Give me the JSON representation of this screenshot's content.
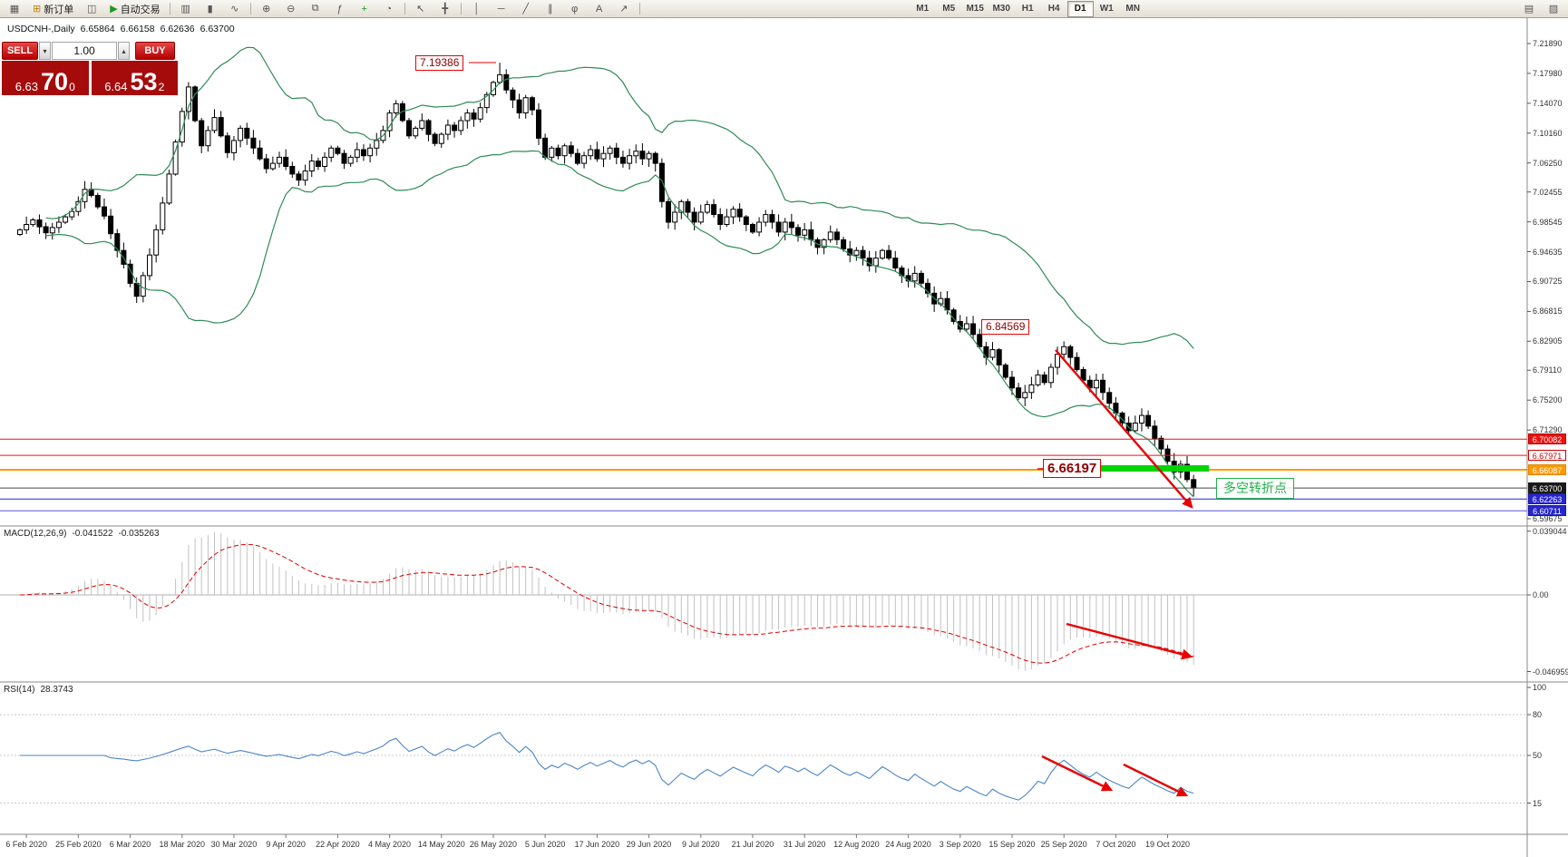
{
  "toolbar": {
    "items": [
      {
        "name": "new-chart-icon",
        "glyph": "▦"
      },
      {
        "name": "new-order-button",
        "glyph": "⊞",
        "glyph_color": "#b8860b",
        "label": "新订单"
      },
      {
        "name": "chart-window-icon",
        "glyph": "◫"
      },
      {
        "name": "autotrading-button",
        "glyph": "▶",
        "glyph_color": "#1a9a1a",
        "label": "自动交易"
      },
      {
        "sep": true
      },
      {
        "name": "bar-chart-icon",
        "glyph": "▥"
      },
      {
        "name": "candlestick-chart-icon",
        "glyph": "▮"
      },
      {
        "name": "line-chart-icon",
        "glyph": "∿"
      },
      {
        "sep": true
      },
      {
        "name": "zoom-in-icon",
        "glyph": "⊕"
      },
      {
        "name": "zoom-out-icon",
        "glyph": "⊖"
      },
      {
        "name": "tile-windows-icon",
        "glyph": "⧉"
      },
      {
        "name": "indicators-icon",
        "glyph": "ƒ"
      },
      {
        "name": "add-indicator-icon",
        "glyph": "+",
        "glyph_color": "#1a9a1a"
      },
      {
        "name": "period-clock-icon",
        "glyph": "◔"
      },
      {
        "sep": true
      },
      {
        "name": "cursor-icon",
        "glyph": "↖"
      },
      {
        "name": "crosshair-icon",
        "glyph": "╋"
      },
      {
        "sep": true
      },
      {
        "name": "vertical-line-icon",
        "glyph": "│"
      },
      {
        "name": "horizontal-line-icon",
        "glyph": "─"
      },
      {
        "name": "trendline-icon",
        "glyph": "╱"
      },
      {
        "name": "channel-icon",
        "glyph": "∥"
      },
      {
        "name": "fibonacci-icon",
        "glyph": "φ"
      },
      {
        "name": "text-label-icon",
        "glyph": "A"
      },
      {
        "name": "arrow-object-icon",
        "glyph": "↗"
      },
      {
        "sep": true
      }
    ],
    "timeframes": [
      "M1",
      "M5",
      "M15",
      "M30",
      "H1",
      "H4",
      "D1",
      "W1",
      "MN"
    ],
    "active_timeframe": "D1",
    "right_icons": [
      {
        "name": "charts-layout-icon",
        "glyph": "▤"
      },
      {
        "name": "window-mode-icon",
        "glyph": "▨"
      }
    ]
  },
  "trade_panel": {
    "sell_label": "SELL",
    "buy_label": "BUY",
    "volume": "1.00",
    "spinner_down": "▾",
    "spinner_up": "▴",
    "bid_small": "6.63",
    "bid_big": "70",
    "bid_sup": "0",
    "ask_small": "6.64",
    "ask_big": "53",
    "ask_sup": "2"
  },
  "chart_data": {
    "type": "candlestick",
    "title": "USDCNH-,Daily",
    "ohlc_display": {
      "open": "6.65864",
      "high": "6.66158",
      "low": "6.62636",
      "close": "6.63700"
    },
    "closes": [
      6.975,
      6.982,
      6.988,
      6.979,
      6.971,
      6.978,
      6.985,
      6.992,
      6.999,
      7.012,
      7.028,
      7.02,
      7.005,
      6.993,
      6.97,
      6.948,
      6.93,
      6.905,
      6.888,
      6.915,
      6.942,
      6.975,
      7.01,
      7.048,
      7.09,
      7.13,
      7.162,
      7.118,
      7.085,
      7.105,
      7.122,
      7.098,
      7.076,
      7.092,
      7.108,
      7.095,
      7.082,
      7.068,
      7.055,
      7.062,
      7.07,
      7.058,
      7.048,
      7.04,
      7.052,
      7.065,
      7.058,
      7.07,
      7.082,
      7.075,
      7.062,
      7.07,
      7.08,
      7.072,
      7.082,
      7.092,
      7.105,
      7.128,
      7.14,
      7.118,
      7.098,
      7.108,
      7.118,
      7.1,
      7.088,
      7.1,
      7.112,
      7.105,
      7.118,
      7.128,
      7.12,
      7.135,
      7.152,
      7.168,
      7.178,
      7.158,
      7.145,
      7.128,
      7.148,
      7.132,
      7.095,
      7.07,
      7.082,
      7.072,
      7.085,
      7.075,
      7.062,
      7.072,
      7.08,
      7.068,
      7.075,
      7.082,
      7.07,
      7.062,
      7.072,
      7.078,
      7.068,
      7.075,
      7.062,
      7.012,
      6.985,
      6.998,
      7.012,
      6.998,
      6.985,
      6.998,
      7.008,
      6.995,
      6.982,
      6.992,
      7.002,
      6.992,
      6.982,
      6.972,
      6.985,
      6.995,
      6.985,
      6.972,
      6.985,
      6.978,
      6.968,
      6.975,
      6.962,
      6.952,
      6.962,
      6.972,
      6.962,
      6.95,
      6.942,
      6.948,
      6.938,
      6.928,
      6.938,
      6.948,
      6.938,
      6.925,
      6.915,
      6.908,
      6.918,
      6.905,
      6.892,
      6.878,
      6.885,
      6.87,
      6.855,
      6.845,
      6.852,
      6.838,
      6.822,
      6.808,
      6.818,
      6.798,
      6.782,
      6.768,
      6.755,
      6.762,
      6.772,
      6.785,
      6.775,
      6.795,
      6.812,
      6.822,
      6.808,
      6.792,
      6.778,
      6.768,
      6.778,
      6.762,
      6.748,
      6.735,
      6.722,
      6.712,
      6.722,
      6.732,
      6.718,
      6.702,
      6.688,
      6.672,
      6.658,
      6.668,
      6.648,
      6.637
    ],
    "y_tick_labels": [
      "7.21890",
      "7.17980",
      "7.14070",
      "7.10160",
      "7.06250",
      "7.02455",
      "6.98545",
      "6.94635",
      "6.90725",
      "6.86815",
      "6.82905",
      "6.79110",
      "6.75200",
      "6.71290",
      "6.59675"
    ],
    "x_tick_labels": [
      "6 Feb 2020",
      "25 Feb 2020",
      "6 Mar 2020",
      "18 Mar 2020",
      "30 Mar 2020",
      "9 Apr 2020",
      "22 Apr 2020",
      "4 May 2020",
      "14 May 2020",
      "26 May 2020",
      "5 Jun 2020",
      "17 Jun 2020",
      "29 Jun 2020",
      "9 Jul 2020",
      "21 Jul 2020",
      "31 Jul 2020",
      "12 Aug 2020",
      "24 Aug 2020",
      "3 Sep 2020",
      "15 Sep 2020",
      "25 Sep 2020",
      "7 Oct 2020",
      "19 Oct 2020"
    ],
    "h_lines": [
      {
        "price": 6.70082,
        "color": "#ee1111",
        "w": 1
      },
      {
        "price": 6.67971,
        "color": "#ee1111",
        "w": 1
      },
      {
        "price": 6.66087,
        "color": "#ff9900",
        "w": 2
      },
      {
        "price": 6.637,
        "color": "#444444",
        "w": 1
      },
      {
        "price": 6.62263,
        "color": "#2626cc",
        "w": 1
      },
      {
        "price": 6.60711,
        "color": "#5555dd",
        "w": 1
      }
    ],
    "price_badges": [
      {
        "text": "6.70082",
        "bg": "#e81212",
        "fg": "#ffffff",
        "border": "#c00000"
      },
      {
        "text": "6.67971",
        "bg": "#ffffff",
        "fg": "#cc0000",
        "border": "#cc0000"
      },
      {
        "text": "6.66087",
        "bg": "#ff9900",
        "fg": "#ffffff",
        "border": "#e08800"
      },
      {
        "text": "6.63700",
        "bg": "#1a1a1a",
        "fg": "#ffffff",
        "border": "#1a1a1a"
      },
      {
        "text": "6.62263",
        "bg": "#2626cc",
        "fg": "#ffffff",
        "border": "#1a1aaa"
      },
      {
        "text": "6.60711",
        "bg": "#2626cc",
        "fg": "#ffffff",
        "border": "#1a1aaa"
      }
    ],
    "indicators": {
      "bollinger": {
        "period": 20,
        "deviation": 2,
        "color": "#2e8b57"
      },
      "macd": {
        "label": "MACD(12,26,9)",
        "value_main": "-0.041522",
        "value_signal": "-0.035263",
        "axis_labels": [
          "0.039044",
          "0.00",
          "-0.046959"
        ],
        "histogram_color": "#c2c2c2",
        "signal_color": "#dd0000"
      },
      "rsi": {
        "label": "RSI(14)",
        "value": "28.3743",
        "axis_labels": [
          "100",
          "80",
          "50",
          "15"
        ],
        "levels": [
          80,
          50,
          15
        ],
        "color": "#4a86c8"
      }
    },
    "annotations": {
      "peak": "7.19386",
      "swing": "6.84569",
      "support": "6.66197",
      "turning_point_label": "多空转折点",
      "arrow_color": "#e60000",
      "support_zone_color": "#00d400"
    }
  }
}
